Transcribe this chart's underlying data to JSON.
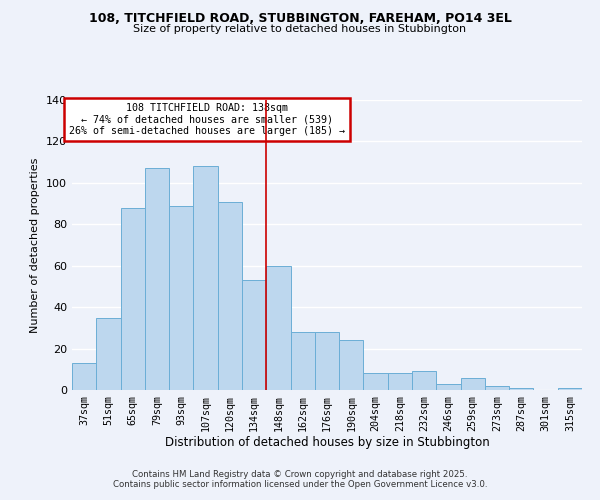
{
  "title1": "108, TITCHFIELD ROAD, STUBBINGTON, FAREHAM, PO14 3EL",
  "title2": "Size of property relative to detached houses in Stubbington",
  "xlabel": "Distribution of detached houses by size in Stubbington",
  "ylabel": "Number of detached properties",
  "categories": [
    "37sqm",
    "51sqm",
    "65sqm",
    "79sqm",
    "93sqm",
    "107sqm",
    "120sqm",
    "134sqm",
    "148sqm",
    "162sqm",
    "176sqm",
    "190sqm",
    "204sqm",
    "218sqm",
    "232sqm",
    "246sqm",
    "259sqm",
    "273sqm",
    "287sqm",
    "301sqm",
    "315sqm"
  ],
  "values": [
    13,
    35,
    88,
    107,
    89,
    108,
    91,
    53,
    60,
    28,
    28,
    24,
    8,
    8,
    9,
    3,
    6,
    2,
    1,
    0,
    1
  ],
  "bar_color": "#bdd7ee",
  "bar_edge_color": "#6baed6",
  "ylim": [
    0,
    140
  ],
  "yticks": [
    0,
    20,
    40,
    60,
    80,
    100,
    120,
    140
  ],
  "vline_x": 7.5,
  "vline_color": "#cc0000",
  "annotation_title": "108 TITCHFIELD ROAD: 138sqm",
  "annotation_line1": "← 74% of detached houses are smaller (539)",
  "annotation_line2": "26% of semi-detached houses are larger (185) →",
  "annotation_box_color": "#cc0000",
  "footer1": "Contains HM Land Registry data © Crown copyright and database right 2025.",
  "footer2": "Contains public sector information licensed under the Open Government Licence v3.0.",
  "background_color": "#eef2fa",
  "grid_color": "#ffffff"
}
